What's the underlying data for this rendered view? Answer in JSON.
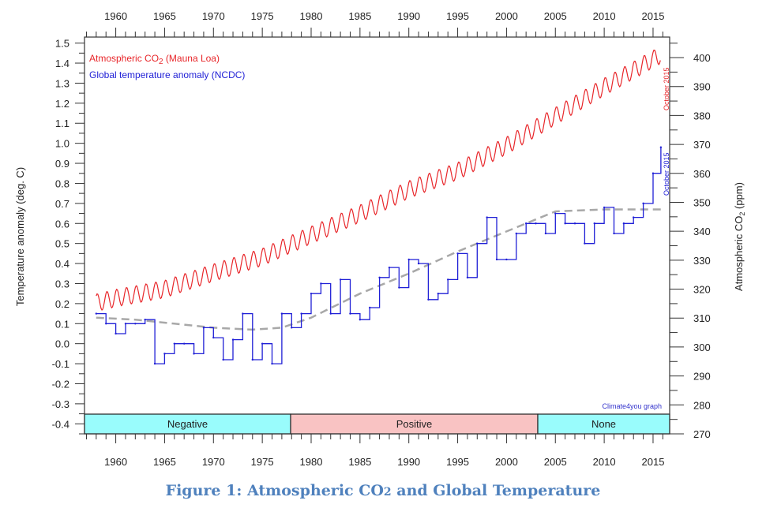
{
  "caption": {
    "prefix": "Figure 1: Atmospheric CO",
    "sub": "2",
    "suffix": " and Global Temperature"
  },
  "chart_data": {
    "type": "line",
    "xlim": [
      1956.8,
      2016.7
    ],
    "x_ticks": [
      1960,
      1965,
      1970,
      1975,
      1980,
      1985,
      1990,
      1995,
      2000,
      2005,
      2010,
      2015
    ],
    "y_left": {
      "label": "Temperature anomaly (deg. C)",
      "lim": [
        -0.45,
        1.53
      ],
      "ticks": [
        1.5,
        1.4,
        1.3,
        1.2,
        1.1,
        1.0,
        0.9,
        0.8,
        0.7,
        0.6,
        0.5,
        0.4,
        0.3,
        0.2,
        0.1,
        0.0,
        -0.1,
        -0.2,
        -0.3,
        -0.4
      ],
      "tick_labels": [
        "1.5",
        "1.4",
        "1.3",
        "1.2",
        "1.1",
        "1.0",
        "0.9",
        "0.8",
        "0.7",
        "0.6",
        "0.5",
        "0.4",
        "0.3",
        "0.2",
        "0.1",
        "0.0",
        "-0.1",
        "-0.2",
        "-0.3",
        "-0.4"
      ]
    },
    "y_right": {
      "label_prefix": "Atmospheric CO",
      "label_sub": "2",
      "label_suffix": " (ppm)",
      "lim": [
        270,
        407.1
      ],
      "ticks": [
        400,
        390,
        380,
        370,
        360,
        350,
        340,
        330,
        320,
        310,
        300,
        290,
        280,
        270
      ]
    },
    "series": [
      {
        "name": "Atmospheric CO2 (Mauna Loa)",
        "legend_prefix": "Atmospheric CO",
        "legend_sub": "2",
        "legend_suffix": " (Mauna Loa)",
        "axis": "right",
        "color": "#e8262a",
        "seasonal_amplitude_ppm": 3.0,
        "x": [
          1958,
          1960,
          1965,
          1970,
          1975,
          1980,
          1985,
          1990,
          1995,
          2000,
          2005,
          2010,
          2015.8
        ],
        "y": [
          315.3,
          316.9,
          320.0,
          325.7,
          331.1,
          338.7,
          346.1,
          354.4,
          360.8,
          369.6,
          379.8,
          389.9,
          401.0
        ],
        "end_label": "October 2015"
      },
      {
        "name": "Global temperature anomaly (NCDC)",
        "axis": "left",
        "color": "#1f1fd6",
        "x": [
          1958,
          1959,
          1960,
          1961,
          1962,
          1963,
          1964,
          1965,
          1966,
          1967,
          1968,
          1969,
          1970,
          1971,
          1972,
          1973,
          1974,
          1975,
          1976,
          1977,
          1978,
          1979,
          1980,
          1981,
          1982,
          1983,
          1984,
          1985,
          1986,
          1987,
          1988,
          1989,
          1990,
          1991,
          1992,
          1993,
          1994,
          1995,
          1996,
          1997,
          1998,
          1999,
          2000,
          2001,
          2002,
          2003,
          2004,
          2005,
          2006,
          2007,
          2008,
          2009,
          2010,
          2011,
          2012,
          2013,
          2014,
          2015,
          2015.8
        ],
        "y": [
          0.15,
          0.1,
          0.05,
          0.1,
          0.1,
          0.12,
          -0.1,
          -0.05,
          0.0,
          0.0,
          -0.05,
          0.08,
          0.03,
          -0.08,
          0.02,
          0.15,
          -0.08,
          0.0,
          -0.1,
          0.15,
          0.08,
          0.15,
          0.25,
          0.3,
          0.15,
          0.32,
          0.15,
          0.12,
          0.18,
          0.33,
          0.38,
          0.28,
          0.42,
          0.4,
          0.22,
          0.25,
          0.32,
          0.45,
          0.33,
          0.5,
          0.63,
          0.42,
          0.42,
          0.55,
          0.6,
          0.6,
          0.55,
          0.65,
          0.6,
          0.6,
          0.5,
          0.6,
          0.68,
          0.55,
          0.6,
          0.63,
          0.7,
          0.85,
          0.98
        ],
        "end_label": "October 2015"
      },
      {
        "axis": "left",
        "color": "#a8a8a8",
        "style": "dashed",
        "x": [
          1958,
          1962,
          1966,
          1970,
          1974,
          1977,
          1980,
          1985,
          1990,
          1995,
          2000,
          2005,
          2010,
          2015.8
        ],
        "y": [
          0.13,
          0.12,
          0.1,
          0.08,
          0.07,
          0.08,
          0.13,
          0.25,
          0.35,
          0.46,
          0.56,
          0.66,
          0.67,
          0.67
        ]
      }
    ],
    "bands": [
      {
        "label": "Negative",
        "from": 1956.8,
        "to": 1977.9,
        "color": "#99fcfc"
      },
      {
        "label": "Positive",
        "from": 1977.9,
        "to": 2003.2,
        "color": "#f9c3c3"
      },
      {
        "label": "None",
        "from": 2003.2,
        "to": 2016.7,
        "color": "#99fcfc"
      }
    ],
    "credit": "Climate4you graph",
    "grid": false,
    "legend_placement": "top-left"
  }
}
